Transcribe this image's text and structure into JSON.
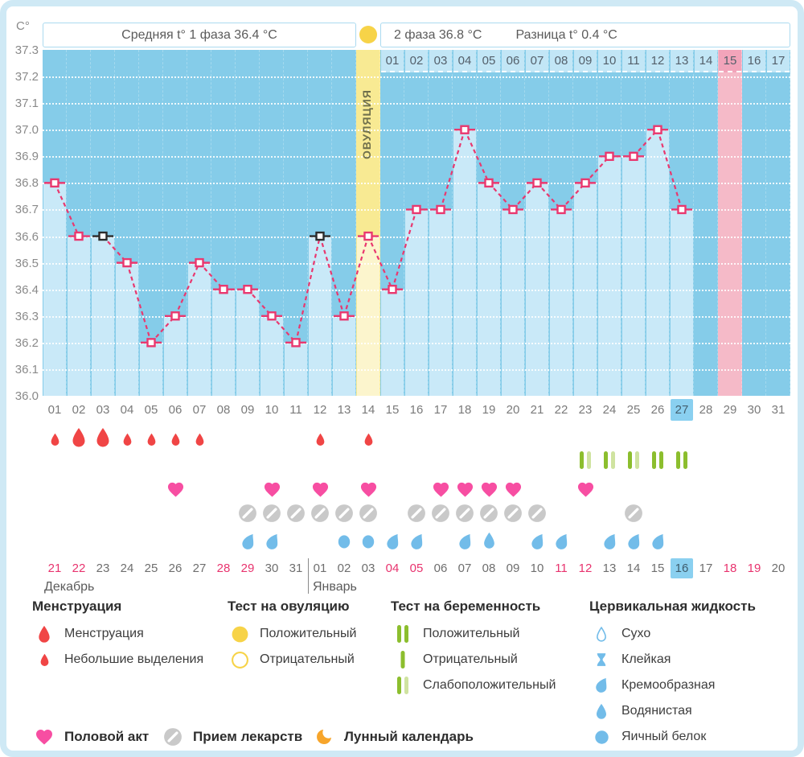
{
  "unit_label": "C°",
  "header": {
    "phase1": "Средняя t° 1 фаза 36.4 °C",
    "phase2": "2 фаза 36.8 °C",
    "diff": "Разница t° 0.4 °C"
  },
  "chart_data": {
    "type": "line",
    "title": "Basal body temperature cycle chart",
    "ylabel": "C°",
    "ylim": [
      36.0,
      37.3
    ],
    "grid": true,
    "y_ticks": [
      "37.3",
      "37.2",
      "37.1",
      "37.0",
      "36.9",
      "36.8",
      "36.7",
      "36.6",
      "36.5",
      "36.4",
      "36.3",
      "36.2",
      "36.1",
      "36.0"
    ],
    "cycle_days": [
      "01",
      "02",
      "03",
      "04",
      "05",
      "06",
      "07",
      "08",
      "09",
      "10",
      "11",
      "12",
      "13",
      "14",
      "15",
      "16",
      "17",
      "18",
      "19",
      "20",
      "21",
      "22",
      "23",
      "24",
      "25",
      "26",
      "27",
      "28",
      "29",
      "30",
      "31"
    ],
    "temps": [
      36.8,
      36.6,
      36.6,
      36.5,
      36.2,
      36.3,
      36.5,
      36.4,
      36.4,
      36.3,
      36.2,
      36.6,
      36.3,
      36.6,
      36.4,
      36.7,
      36.7,
      37.0,
      36.8,
      36.7,
      36.8,
      36.7,
      36.8,
      36.9,
      36.9,
      37.0,
      36.7,
      null,
      null,
      null,
      null
    ],
    "disturbed_days": [
      3,
      12
    ],
    "ovulation_day": 14,
    "ovulation_label": "ОВУЛЯЦИЯ",
    "phase2_day_labels": [
      "01",
      "02",
      "03",
      "04",
      "05",
      "06",
      "07",
      "08",
      "09",
      "10",
      "11",
      "12",
      "13",
      "14",
      "15",
      "16",
      "17"
    ],
    "phase2_start_cycle_day": 15,
    "phase2_highlighted_label": "15",
    "highlight_column_cycle_day": 29,
    "today_cycle_day": 27,
    "avg_phase1": 36.4,
    "avg_phase2": 36.8,
    "difference": 0.4
  },
  "symbols": {
    "menstruation_heavy_days": [
      2,
      3
    ],
    "menstruation_light_days": [
      1,
      4,
      5,
      6,
      7,
      12,
      14
    ],
    "pregnancy_test_weak_positive_days": [
      23,
      24,
      25
    ],
    "pregnancy_test_positive_days": [
      26,
      27
    ],
    "intercourse_days": [
      6,
      10,
      12,
      14,
      17,
      18,
      19,
      20,
      23
    ],
    "medication_days": [
      9,
      10,
      11,
      12,
      13,
      14,
      16,
      17,
      18,
      19,
      20,
      21,
      25
    ],
    "cervical_creamy_days": [
      9,
      10,
      15,
      16,
      18,
      21,
      22,
      24,
      25,
      26
    ],
    "cervical_watery_days": [
      19
    ],
    "cervical_eggwhite_days": [
      13,
      14
    ]
  },
  "dates": {
    "december": {
      "label": "Декабрь",
      "days": [
        "21",
        "22",
        "23",
        "24",
        "25",
        "26",
        "27",
        "28",
        "29",
        "30",
        "31"
      ],
      "weekend": [
        "21",
        "22",
        "28",
        "29"
      ]
    },
    "january": {
      "label": "Январь",
      "days": [
        "01",
        "02",
        "03",
        "04",
        "05",
        "06",
        "07",
        "08",
        "09",
        "10",
        "11",
        "12",
        "13",
        "14",
        "15",
        "16",
        "17",
        "18",
        "19",
        "20"
      ],
      "weekend": [
        "04",
        "05",
        "11",
        "12",
        "18",
        "19"
      ]
    },
    "today_date": "16"
  },
  "legend": {
    "menstruation": {
      "title": "Менструация",
      "items": [
        {
          "icon": "drop-big",
          "label": "Менструация"
        },
        {
          "icon": "drop-small",
          "label": "Небольшие выделения"
        }
      ]
    },
    "ovulation_test": {
      "title": "Тест на овуляцию",
      "items": [
        {
          "icon": "circle-yellow-filled",
          "label": "Положительный"
        },
        {
          "icon": "circle-yellow-outline",
          "label": "Отрицательный"
        }
      ]
    },
    "pregnancy_test": {
      "title": "Тест на беременность",
      "items": [
        {
          "icon": "bars-positive",
          "label": "Положительный"
        },
        {
          "icon": "bar-negative",
          "label": "Отрицательный"
        },
        {
          "icon": "bars-weak-positive",
          "label": "Слабоположительный"
        }
      ]
    },
    "cervical_fluid": {
      "title": "Цервикальная жидкость",
      "items": [
        {
          "icon": "drop-outline",
          "label": "Сухо"
        },
        {
          "icon": "hourglass",
          "label": "Клейкая"
        },
        {
          "icon": "comma-drop",
          "label": "Кремообразная"
        },
        {
          "icon": "teardrop",
          "label": "Водянистая"
        },
        {
          "icon": "circle-blue",
          "label": "Яичный белок"
        }
      ]
    },
    "bottom": [
      {
        "icon": "heart",
        "label": "Половой акт"
      },
      {
        "icon": "pill",
        "label": "Прием лекарств"
      },
      {
        "icon": "moon",
        "label": "Лунный календарь"
      }
    ]
  },
  "colors": {
    "line": "#e9386f",
    "marker_disturbed": "#2b2b2b",
    "chart_bg": "#85cce9",
    "bar": "#c9e9f8",
    "ovulation_col": "#f8ea93",
    "ovulation_bar": "#fcf5cd",
    "pink_col": "#f5bac8",
    "pink_cell": "#f2a4ba",
    "cell_blue": "#c2e6f6",
    "today_blue": "#8ad0f0",
    "drop_red": "#f04545",
    "heart_pink": "#f74ea2",
    "pill_gray": "#c9c9c9",
    "green_dark": "#8cbe2e",
    "green_light": "#cfe3a0",
    "cervical_blue": "#72bce9",
    "moon_orange": "#f7a52b",
    "test_yellow": "#f7d348",
    "weekend_red": "#e8336e",
    "text_gray": "#767676"
  }
}
